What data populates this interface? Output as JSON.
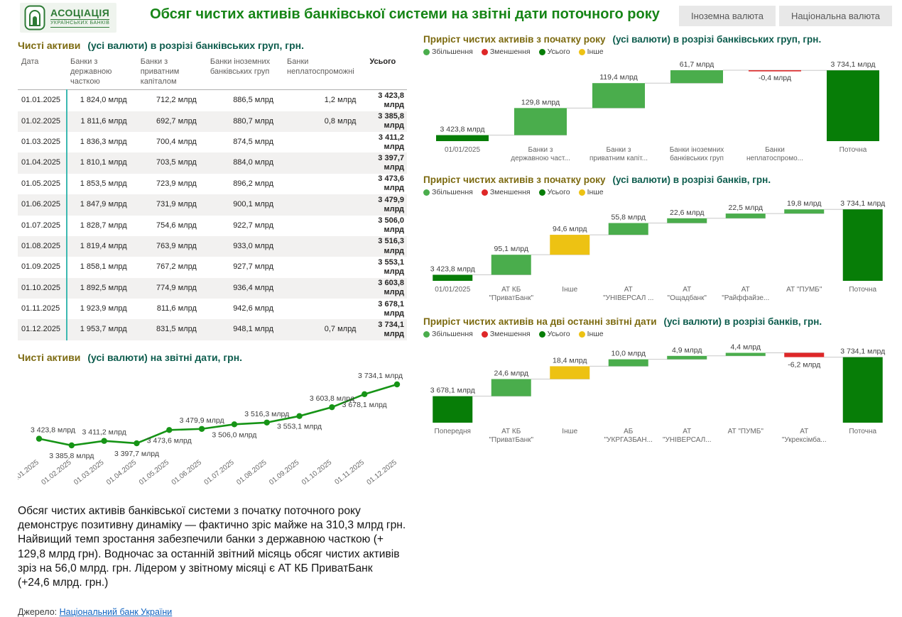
{
  "header": {
    "logo_line1": "АСОЦІАЦІЯ",
    "logo_line2": "УКРАЇНСЬКИХ БАНКІВ",
    "title": "Обсяг чистих активів  банківської системи на звітні дати поточного року",
    "buttons": [
      "Іноземна валюта",
      "Національна валюта"
    ]
  },
  "colors": {
    "title_accent": "#7c6a10",
    "title_rest": "#0d5c4d",
    "page_title": "#168516",
    "increase": "#4aad4c",
    "decrease": "#de2728",
    "total": "#077d07",
    "other": "#edc213",
    "line": "#169416",
    "link": "#0f62c0",
    "table_divider": "#3cb9b1"
  },
  "commentary": "Обсяг чистих активів банківської системи з початку поточного року демонструє позитивну динаміку — фактично зріс майже на 310,3 млрд грн. Найвищий темп зростання забезпечили банки з державною часткою (+ 129,8 млрд грн). Водночас за останній звітний місяць обсяг чистих активів зріз на 56,0 млрд. грн. Лідером у звітному місяці є АТ КБ ПриватБанк (+24,6 млрд. грн.)",
  "source": {
    "label": "Джерело:",
    "link_text": "Національний банк України"
  },
  "chart_data": [
    {
      "type": "table",
      "title_accent": "Чисті активи",
      "title_rest": "(усі валюти) в розрізі банківських груп,  грн.",
      "columns": [
        "Дата",
        "Банки з державною часткою",
        "Банки з приватним капіталом",
        "Банки іноземних банківських груп",
        "Банки неплатоспроможні",
        "Усього"
      ],
      "rows": [
        [
          "01.01.2025",
          "1 824,0 млрд",
          "712,2 млрд",
          "886,5 млрд",
          "1,2 млрд",
          "3 423,8 млрд"
        ],
        [
          "01.02.2025",
          "1 811,6 млрд",
          "692,7 млрд",
          "880,7 млрд",
          "0,8 млрд",
          "3 385,8 млрд"
        ],
        [
          "01.03.2025",
          "1 836,3 млрд",
          "700,4 млрд",
          "874,5 млрд",
          "",
          "3 411,2 млрд"
        ],
        [
          "01.04.2025",
          "1 810,1 млрд",
          "703,5 млрд",
          "884,0 млрд",
          "",
          "3 397,7 млрд"
        ],
        [
          "01.05.2025",
          "1 853,5 млрд",
          "723,9 млрд",
          "896,2 млрд",
          "",
          "3 473,6 млрд"
        ],
        [
          "01.06.2025",
          "1 847,9 млрд",
          "731,9 млрд",
          "900,1 млрд",
          "",
          "3 479,9 млрд"
        ],
        [
          "01.07.2025",
          "1 828,7 млрд",
          "754,6 млрд",
          "922,7 млрд",
          "",
          "3 506,0 млрд"
        ],
        [
          "01.08.2025",
          "1 819,4 млрд",
          "763,9 млрд",
          "933,0 млрд",
          "",
          "3 516,3 млрд"
        ],
        [
          "01.09.2025",
          "1 858,1 млрд",
          "767,2 млрд",
          "927,7 млрд",
          "",
          "3 553,1 млрд"
        ],
        [
          "01.10.2025",
          "1 892,5 млрд",
          "774,9 млрд",
          "936,4 млрд",
          "",
          "3 603,8 млрд"
        ],
        [
          "01.11.2025",
          "1 923,9 млрд",
          "811,6 млрд",
          "942,6 млрд",
          "",
          "3 678,1 млрд"
        ],
        [
          "01.12.2025",
          "1 953,7 млрд",
          "831,5 млрд",
          "948,1 млрд",
          "0,7 млрд",
          "3 734,1 млрд"
        ]
      ]
    },
    {
      "type": "line",
      "title_accent": "Чисті активи",
      "title_rest": "(усі валюти) на звітні дати, грн.",
      "x": [
        "01.01.2025",
        "01.02.2025",
        "01.03.2025",
        "01.04.2025",
        "01.05.2025",
        "01.06.2025",
        "01.07.2025",
        "01.08.2025",
        "01.09.2025",
        "01.10.2025",
        "01.11.2025",
        "01.12.2025"
      ],
      "values": [
        3423.8,
        3385.8,
        3411.2,
        3397.7,
        3473.6,
        3479.9,
        3506.0,
        3516.3,
        3553.1,
        3603.8,
        3678.1,
        3734.1
      ],
      "labels": [
        "3 423,8 млрд",
        "3 385,8 млрд",
        "3 411,2 млрд",
        "3 397,7 млрд",
        "3 473,6 млрд",
        "3 479,9 млрд",
        "3 506,0 млрд",
        "3 516,3 млрд",
        "3 553,1 млрд",
        "3 603,8 млрд",
        "3 678,1 млрд",
        "3 734,1 млрд"
      ],
      "label_pos": [
        "above",
        "below",
        "above",
        "below",
        "below",
        "above",
        "below",
        "above",
        "below",
        "above",
        "below",
        "above"
      ],
      "ylim": [
        3385.8,
        3734.1
      ],
      "grid": false
    },
    {
      "type": "waterfall",
      "name": "waterfall-groups",
      "title_accent": "Приріст чистих активів з початку року",
      "title_rest": "(усі валюти) в розрізі банківських груп, грн.",
      "legend": [
        {
          "label": "Збільшення",
          "kind": "inc"
        },
        {
          "label": "Зменшення",
          "kind": "dec"
        },
        {
          "label": "Усього",
          "kind": "total"
        },
        {
          "label": "Інше",
          "kind": "other"
        }
      ],
      "categories": [
        [
          "01/01/2025"
        ],
        [
          "Банки з",
          "державною част..."
        ],
        [
          "Банки з",
          "приватним капіт..."
        ],
        [
          "Банки іноземних",
          "банківських груп"
        ],
        [
          "Банки",
          "неплатоспромо..."
        ],
        [
          "Поточна"
        ]
      ],
      "bars": [
        {
          "label": "3 423,8 млрд",
          "value": 3423.8,
          "kind": "start"
        },
        {
          "label": "129,8 млрд",
          "value": 129.8,
          "kind": "inc"
        },
        {
          "label": "119,4 млрд",
          "value": 119.4,
          "kind": "inc"
        },
        {
          "label": "61,7 млрд",
          "value": 61.7,
          "kind": "inc"
        },
        {
          "label": "-0,4 млрд",
          "value": -0.4,
          "kind": "dec"
        },
        {
          "label": "3 734,1 млрд",
          "value": 3734.1,
          "kind": "total"
        }
      ],
      "ylim": [
        3395,
        3745
      ]
    },
    {
      "type": "waterfall",
      "name": "waterfall-banks-ytd",
      "title_accent": "Приріст чистих активів  з початку року",
      "title_rest": "(усі валюти) в розрізі банків, грн.",
      "legend": [
        {
          "label": "Збільшення",
          "kind": "inc"
        },
        {
          "label": "Зменшення",
          "kind": "dec"
        },
        {
          "label": "Усього",
          "kind": "total"
        },
        {
          "label": "Інше",
          "kind": "other"
        }
      ],
      "categories": [
        [
          "01/01/2025"
        ],
        [
          "АТ КБ",
          "\"ПриватБанк\""
        ],
        [
          "Інше"
        ],
        [
          "АТ",
          "\"УНІВЕРСАЛ ..."
        ],
        [
          "АТ",
          "\"Ощадбанк\""
        ],
        [
          "АТ",
          "\"Райффайзе..."
        ],
        [
          "АТ \"ПУМБ\""
        ],
        [
          "Поточна"
        ]
      ],
      "bars": [
        {
          "label": "3 423,8 млрд",
          "value": 3423.8,
          "kind": "start"
        },
        {
          "label": "95,1 млрд",
          "value": 95.1,
          "kind": "inc"
        },
        {
          "label": "94,6 млрд",
          "value": 94.6,
          "kind": "other"
        },
        {
          "label": "55,8 млрд",
          "value": 55.8,
          "kind": "inc"
        },
        {
          "label": "22,6 млрд",
          "value": 22.6,
          "kind": "inc"
        },
        {
          "label": "22,5 млрд",
          "value": 22.5,
          "kind": "inc"
        },
        {
          "label": "19,8 млрд",
          "value": 19.8,
          "kind": "inc"
        },
        {
          "label": "3 734,1 млрд",
          "value": 3734.1,
          "kind": "total"
        }
      ],
      "ylim": [
        3395,
        3745
      ]
    },
    {
      "type": "waterfall",
      "name": "waterfall-banks-month",
      "title_accent": "Приріст чистих активів на дві останні звітні дати",
      "title_rest": "(усі валюти) в розрізі банків, грн.",
      "legend": [
        {
          "label": "Збільшення",
          "kind": "inc"
        },
        {
          "label": "Зменшення",
          "kind": "dec"
        },
        {
          "label": "Усього",
          "kind": "total"
        },
        {
          "label": "Інше",
          "kind": "other"
        }
      ],
      "categories": [
        [
          "Попередня"
        ],
        [
          "АТ КБ",
          "\"ПриватБанк\""
        ],
        [
          "Інше"
        ],
        [
          "АБ",
          "\"УКРГАЗБАН..."
        ],
        [
          "АТ",
          "\"УНІВЕРСАЛ..."
        ],
        [
          "АТ \"ПУМБ\""
        ],
        [
          "АТ",
          "\"Укрексімба..."
        ],
        [
          "Поточна"
        ]
      ],
      "bars": [
        {
          "label": "3 678,1 млрд",
          "value": 3678.1,
          "kind": "start"
        },
        {
          "label": "24,6 млрд",
          "value": 24.6,
          "kind": "inc"
        },
        {
          "label": "18,4 млрд",
          "value": 18.4,
          "kind": "other"
        },
        {
          "label": "10,0 млрд",
          "value": 10.0,
          "kind": "inc"
        },
        {
          "label": "4,9 млрд",
          "value": 4.9,
          "kind": "inc"
        },
        {
          "label": "4,4 млрд",
          "value": 4.4,
          "kind": "inc"
        },
        {
          "label": "-6,2 млрд",
          "value": -6.2,
          "kind": "dec"
        },
        {
          "label": "3 734,1 млрд",
          "value": 3734.1,
          "kind": "total"
        }
      ],
      "ylim": [
        3640,
        3746
      ]
    }
  ]
}
